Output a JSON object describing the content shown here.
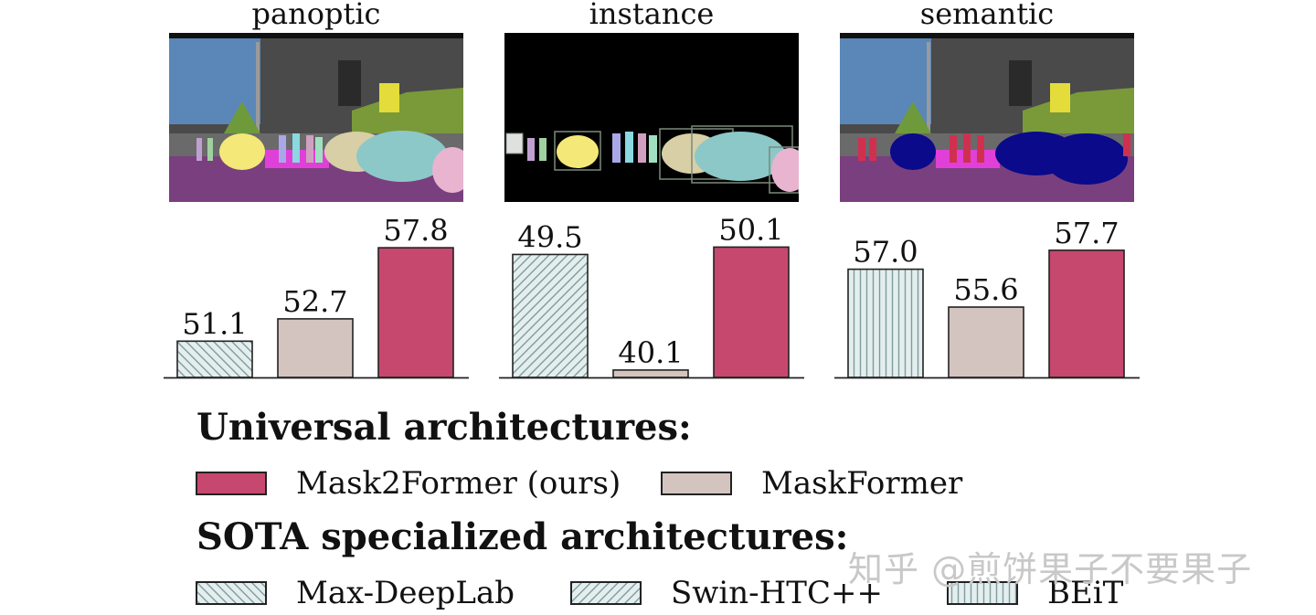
{
  "panels": [
    {
      "title": "panoptic",
      "thumbnail": "panoptic-segmentation-street-scene"
    },
    {
      "title": "instance",
      "thumbnail": "instance-segmentation-street-scene"
    },
    {
      "title": "semantic",
      "thumbnail": "semantic-segmentation-street-scene"
    }
  ],
  "chart_data": [
    {
      "type": "bar",
      "title": "panoptic",
      "categories": [
        "Max-DeepLab",
        "MaskFormer",
        "Mask2Former (ours)"
      ],
      "values": [
        51.1,
        52.7,
        57.8
      ],
      "value_labels": [
        "51.1",
        "52.7",
        "57.8"
      ],
      "ylim": [
        48.5,
        58.2
      ],
      "grid": false
    },
    {
      "type": "bar",
      "title": "instance",
      "categories": [
        "Swin-HTC++",
        "MaskFormer",
        "Mask2Former (ours)"
      ],
      "values": [
        49.5,
        40.1,
        50.1
      ],
      "value_labels": [
        "49.5",
        "40.1",
        "50.1"
      ],
      "ylim": [
        39.5,
        50.5
      ],
      "grid": false
    },
    {
      "type": "bar",
      "title": "semantic",
      "categories": [
        "BEiT",
        "MaskFormer",
        "Mask2Former (ours)"
      ],
      "values": [
        57.0,
        55.6,
        57.7
      ],
      "value_labels": [
        "57.0",
        "55.6",
        "57.7"
      ],
      "ylim": [
        53.0,
        58.0
      ],
      "grid": false
    }
  ],
  "legend": {
    "universal_heading": "Universal architectures:",
    "sota_heading": "SOTA specialized architectures:",
    "items": [
      {
        "label": "Mask2Former (ours)",
        "style": "solid",
        "color": "#c6486e"
      },
      {
        "label": "MaskFormer",
        "style": "solid",
        "color": "#d4c4bf"
      },
      {
        "label": "Max-DeepLab",
        "style": "back-diagonal-hatch",
        "color": "#e4eeee"
      },
      {
        "label": "Swin-HTC++",
        "style": "forward-diagonal-hatch",
        "color": "#e4eeee"
      },
      {
        "label": "BEiT",
        "style": "vertical-hatch",
        "color": "#e4eeee"
      }
    ]
  },
  "watermark": "知乎 @煎饼果子不要果子",
  "colors": {
    "mask2former": "#c6486e",
    "maskformer": "#d4c4bf",
    "sota_fill": "#e4eeee",
    "hatch": "#7f9b9b",
    "edge": "#222222"
  }
}
